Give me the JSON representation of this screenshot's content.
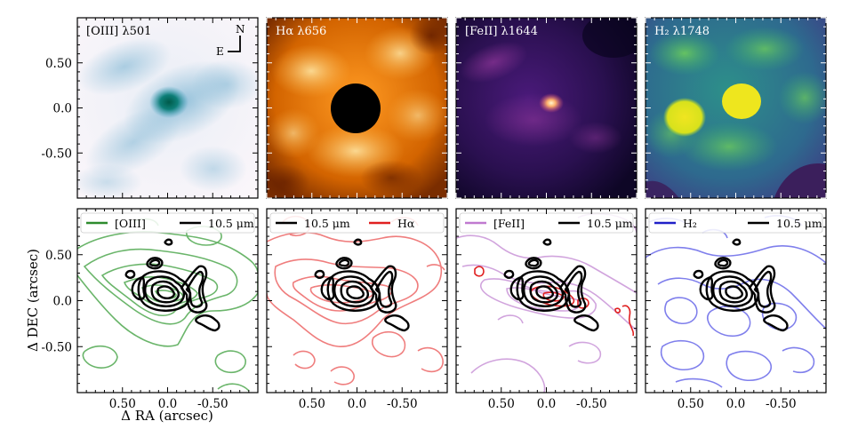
{
  "chart_data": [
    {
      "type": "heatmap",
      "title": "[OIII] λ501",
      "title_color": "#000000",
      "colormap": "PuBuGn",
      "compass": {
        "north": "N",
        "east": "E"
      },
      "xlim": [
        1.0,
        -1.0
      ],
      "ylim": [
        -1.0,
        1.0
      ],
      "yticks": [
        0.5,
        0.0,
        -0.5
      ],
      "ytick_labels": [
        "0.50",
        "0.0",
        "-0.50"
      ]
    },
    {
      "type": "heatmap",
      "title": "Hα λ656",
      "title_color": "#ffffff",
      "colormap": "afmhot",
      "xlim": [
        1.0,
        -1.0
      ],
      "ylim": [
        -1.0,
        1.0
      ]
    },
    {
      "type": "heatmap",
      "title": "[FeII] λ1644",
      "title_color": "#ffffff",
      "colormap": "magma",
      "xlim": [
        1.0,
        -1.0
      ],
      "ylim": [
        -1.0,
        1.0
      ]
    },
    {
      "type": "heatmap",
      "title": "H₂ λ1748",
      "title_color": "#ffffff",
      "colormap": "viridis",
      "xlim": [
        1.0,
        -1.0
      ],
      "ylim": [
        -1.0,
        1.0
      ]
    },
    {
      "type": "contour",
      "legend": [
        "[OIII]",
        "10.5 μm"
      ],
      "legend_colors": [
        "#2e8b2e",
        "#000000"
      ],
      "legend_placement": "top",
      "contour_color": "#5aad5a",
      "xlim": [
        1.0,
        -1.0
      ],
      "ylim": [
        -1.0,
        1.0
      ],
      "xticks": [
        0.5,
        0.0,
        -0.5
      ],
      "xtick_labels": [
        "0.50",
        "0.0",
        "-0.50"
      ],
      "yticks": [
        0.5,
        0.0,
        -0.5
      ],
      "ytick_labels": [
        "0.50",
        "0.0",
        "-0.50"
      ],
      "xlabel": "Δ RA (arcsec)",
      "ylabel": "Δ DEC (arcsec)"
    },
    {
      "type": "contour",
      "legend": [
        "10.5 μm",
        "Hα"
      ],
      "legend_colors": [
        "#000000",
        "#e02020"
      ],
      "legend_placement": "top",
      "contour_color": "#ee7070",
      "xlim": [
        1.0,
        -1.0
      ],
      "ylim": [
        -1.0,
        1.0
      ],
      "xticks": [
        0.5,
        0.0,
        -0.5
      ],
      "xtick_labels": [
        "0.50",
        "0.0",
        "-0.50"
      ]
    },
    {
      "type": "contour",
      "legend": [
        "[FeII]",
        "10.5 μm"
      ],
      "legend_colors": [
        "#c07ad0",
        "#000000"
      ],
      "legend_placement": "top",
      "contour_color": "#cfa0dc",
      "xlim": [
        1.0,
        -1.0
      ],
      "ylim": [
        -1.0,
        1.0
      ],
      "xticks": [
        0.5,
        0.0,
        -0.5
      ],
      "xtick_labels": [
        "0.50",
        "0.0",
        "-0.50"
      ]
    },
    {
      "type": "contour",
      "legend": [
        "H₂",
        "10.5 μm"
      ],
      "legend_colors": [
        "#2020c8",
        "#000000"
      ],
      "legend_placement": "top",
      "contour_color": "#7272ea",
      "xlim": [
        1.0,
        -1.0
      ],
      "ylim": [
        -1.0,
        1.0
      ],
      "xticks": [
        0.5,
        0.0,
        -0.5
      ],
      "xtick_labels": [
        "0.50",
        "0.0",
        "-0.50"
      ]
    }
  ]
}
